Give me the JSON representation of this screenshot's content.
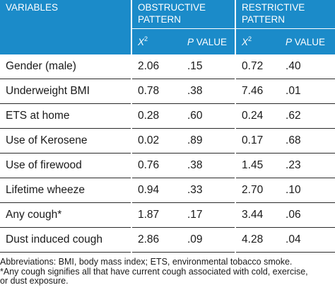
{
  "header": {
    "variables": "VARIABLES",
    "obstructive": "OBSTRUCTIVE PATTERN",
    "restrictive": "RESTRICTIVE PATTERN",
    "x2_label": "X",
    "x2_sup": "2",
    "p_italic": "P",
    "p_rest": " VALUE"
  },
  "rows": [
    {
      "variable": "Gender (male)",
      "obs_x2": "2.06",
      "obs_p": ".15",
      "res_x2": "0.72",
      "res_p": ".40"
    },
    {
      "variable": "Underweight BMI",
      "obs_x2": "0.78",
      "obs_p": ".38",
      "res_x2": "7.46",
      "res_p": ".01"
    },
    {
      "variable": "ETS at home",
      "obs_x2": "0.28",
      "obs_p": ".60",
      "res_x2": "0.24",
      "res_p": ".62"
    },
    {
      "variable": "Use of Kerosene",
      "obs_x2": "0.02",
      "obs_p": ".89",
      "res_x2": "0.17",
      "res_p": ".68"
    },
    {
      "variable": "Use of firewood",
      "obs_x2": "0.76",
      "obs_p": ".38",
      "res_x2": "1.45",
      "res_p": ".23"
    },
    {
      "variable": "Lifetime wheeze",
      "obs_x2": "0.94",
      "obs_p": ".33",
      "res_x2": "2.70",
      "res_p": ".10"
    },
    {
      "variable": "Any cough*",
      "obs_x2": "1.87",
      "obs_p": ".17",
      "res_x2": "3.44",
      "res_p": ".06"
    },
    {
      "variable": "Dust induced cough",
      "obs_x2": "2.86",
      "obs_p": ".09",
      "res_x2": "4.28",
      "res_p": ".04"
    }
  ],
  "notes": {
    "abbreviations": "Abbreviations: BMI, body mass index; ETS, environmental tobacco smoke.",
    "footnote_line1": "*Any cough signifies all that have current cough associated with cold, exercise,",
    "footnote_line2": "or dust exposure."
  },
  "colors": {
    "header_bg": "#1b8bc9",
    "header_text": "#ffffff",
    "rule": "#2a2a2a"
  }
}
